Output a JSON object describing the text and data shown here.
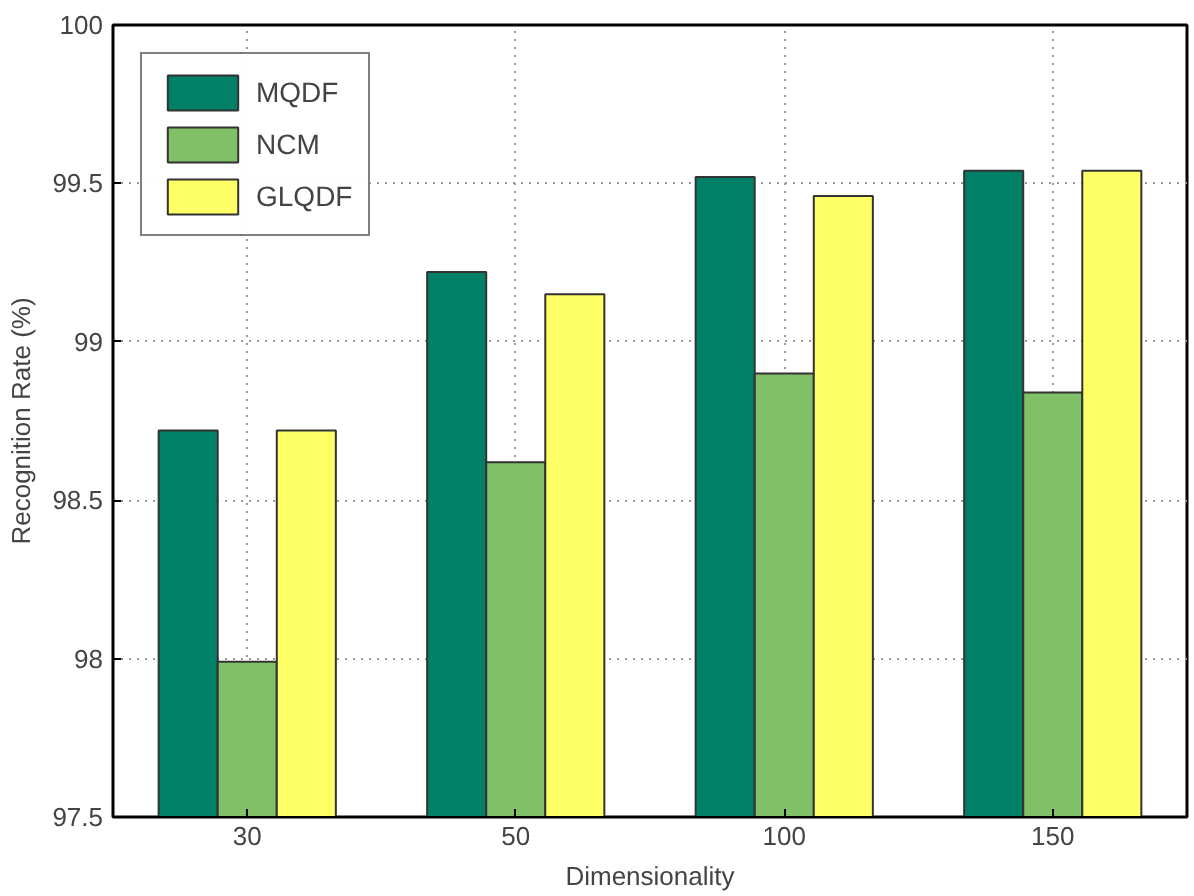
{
  "chart_data": {
    "type": "bar",
    "xlabel": "Dimensionality",
    "ylabel": "Recognition Rate (%)",
    "categories": [
      "30",
      "50",
      "100",
      "150"
    ],
    "series": [
      {
        "name": "MQDF",
        "color": "#008066",
        "values": [
          98.72,
          99.22,
          99.52,
          99.54
        ]
      },
      {
        "name": "NCM",
        "color": "#80c066",
        "values": [
          97.99,
          98.62,
          98.9,
          98.84
        ]
      },
      {
        "name": "GLQDF",
        "color": "#ffff66",
        "values": [
          98.72,
          99.15,
          99.46,
          99.54
        ]
      }
    ],
    "ylim": [
      97.5,
      100
    ],
    "yticks": [
      97.5,
      98,
      98.5,
      99,
      99.5,
      100
    ],
    "grid": true,
    "legend": "top left"
  }
}
